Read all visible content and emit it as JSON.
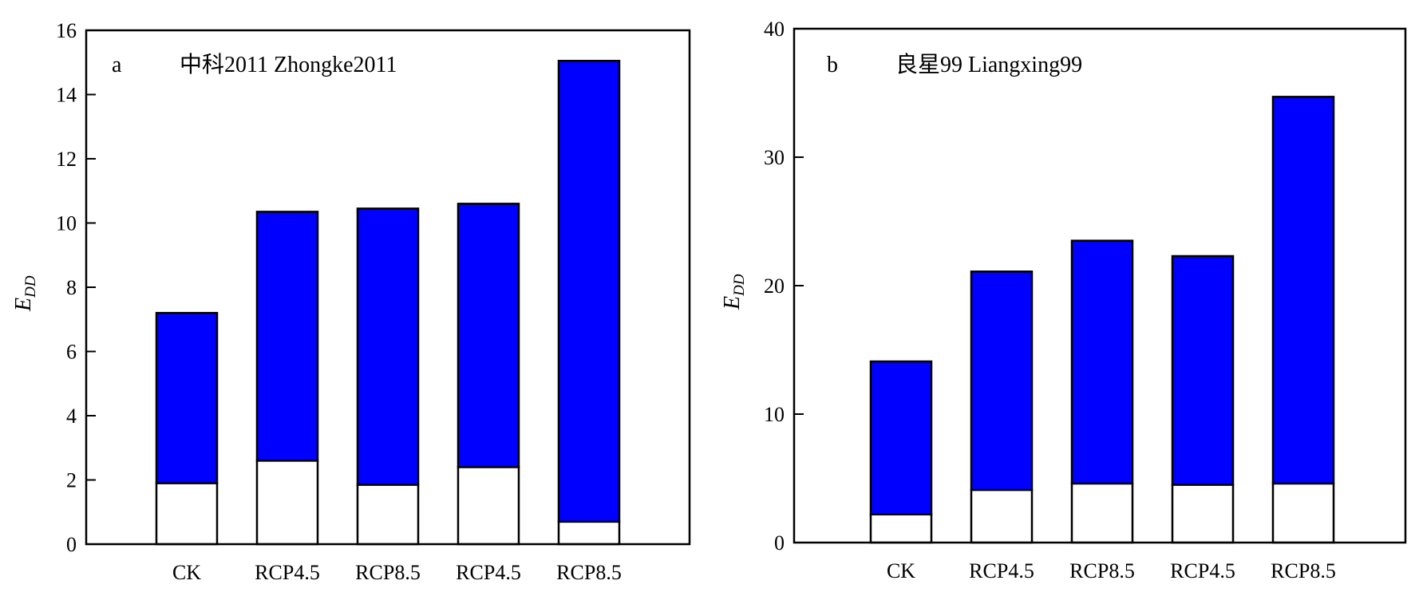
{
  "colors": {
    "upper_segment": "#0000ff",
    "lower_segment": "#ffffff",
    "outline": "#000000"
  },
  "chart_data": [
    {
      "type": "bar",
      "stacked": true,
      "panel_letter": "a",
      "title": "中科2011 Zhongke2011",
      "ylabel": "E",
      "ylabel_sub": "DD",
      "xlabel": "",
      "ylim": [
        0,
        16
      ],
      "yticks": [
        0,
        2,
        4,
        6,
        8,
        10,
        12,
        14,
        16
      ],
      "grid": false,
      "legend": "none",
      "categories": [
        "CK",
        "RCP4.5",
        "RCP8.5",
        "RCP4.5",
        "RCP8.5"
      ],
      "series": [
        {
          "color": "#ffffff",
          "values": [
            1.9,
            2.6,
            1.85,
            2.4,
            0.7
          ]
        },
        {
          "color": "#0000ff",
          "values": [
            5.3,
            7.75,
            8.6,
            8.2,
            14.35
          ]
        }
      ],
      "totals": [
        7.2,
        10.35,
        10.45,
        10.6,
        15.05
      ]
    },
    {
      "type": "bar",
      "stacked": true,
      "panel_letter": "b",
      "title": "良星99 Liangxing99",
      "ylabel": "E",
      "ylabel_sub": "DD",
      "xlabel": "",
      "ylim": [
        0,
        40
      ],
      "yticks": [
        0,
        10,
        20,
        30,
        40
      ],
      "grid": false,
      "legend": "none",
      "categories": [
        "CK",
        "RCP4.5",
        "RCP8.5",
        "RCP4.5",
        "RCP8.5"
      ],
      "series": [
        {
          "color": "#ffffff",
          "values": [
            2.2,
            4.1,
            4.6,
            4.5,
            4.6
          ]
        },
        {
          "color": "#0000ff",
          "values": [
            11.9,
            17.0,
            18.9,
            17.8,
            30.1
          ]
        }
      ],
      "totals": [
        14.1,
        21.1,
        23.5,
        22.3,
        34.7
      ]
    }
  ]
}
